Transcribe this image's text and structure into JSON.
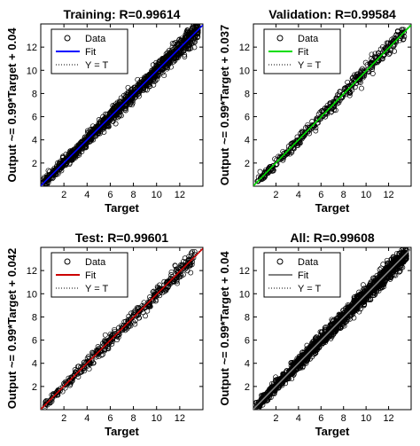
{
  "chart_data": [
    {
      "type": "scatter",
      "title": "Training: R=0.99614",
      "xlabel": "Target",
      "ylabel": "Output ~= 0.99*Target + 0.04",
      "xlim": [
        0,
        14
      ],
      "ylim": [
        0,
        14
      ],
      "xticks": [
        "2",
        "4",
        "6",
        "8",
        "10",
        "12"
      ],
      "yticks": [
        "2",
        "4",
        "6",
        "8",
        "10",
        "12"
      ],
      "fit": {
        "slope": 0.99,
        "intercept": 0.04,
        "color": "#0000ff"
      },
      "point_range": [
        0.2,
        13.6
      ],
      "spread": 0.34,
      "legend": [
        {
          "label": "Data",
          "style": "marker",
          "color": "#000000"
        },
        {
          "label": "Fit",
          "style": "line",
          "color": "#0000ff"
        },
        {
          "label": "Y = T",
          "style": "dotted",
          "color": "#000000"
        }
      ],
      "legend_position": "top-left",
      "grid": false
    },
    {
      "type": "scatter",
      "title": "Validation: R=0.99584",
      "xlabel": "Target",
      "ylabel": "Output ~= 0.99*Target + 0.037",
      "xlim": [
        0,
        14
      ],
      "ylim": [
        0,
        14
      ],
      "xticks": [
        "2",
        "4",
        "6",
        "8",
        "10",
        "12"
      ],
      "yticks": [
        "2",
        "4",
        "6",
        "8",
        "10",
        "12"
      ],
      "fit": {
        "slope": 0.99,
        "intercept": 0.037,
        "color": "#00dd00"
      },
      "point_range": [
        0.3,
        13.4
      ],
      "spread": 0.3,
      "legend": [
        {
          "label": "Data",
          "style": "marker",
          "color": "#000000"
        },
        {
          "label": "Fit",
          "style": "line",
          "color": "#00dd00"
        },
        {
          "label": "Y = T",
          "style": "dotted",
          "color": "#000000"
        }
      ],
      "legend_position": "top-left",
      "grid": false
    },
    {
      "type": "scatter",
      "title": "Test: R=0.99601",
      "xlabel": "Target",
      "ylabel": "Output ~= 0.99*Target + 0.042",
      "xlim": [
        0,
        14
      ],
      "ylim": [
        0,
        14
      ],
      "xticks": [
        "2",
        "4",
        "6",
        "8",
        "10",
        "12"
      ],
      "yticks": [
        "2",
        "4",
        "6",
        "8",
        "10",
        "12"
      ],
      "fit": {
        "slope": 0.99,
        "intercept": 0.042,
        "color": "#cc0000"
      },
      "point_range": [
        0.3,
        13.3
      ],
      "spread": 0.3,
      "legend": [
        {
          "label": "Data",
          "style": "marker",
          "color": "#000000"
        },
        {
          "label": "Fit",
          "style": "line",
          "color": "#cc0000"
        },
        {
          "label": "Y = T",
          "style": "dotted",
          "color": "#000000"
        }
      ],
      "legend_position": "top-left",
      "grid": false
    },
    {
      "type": "scatter",
      "title": "All: R=0.99608",
      "xlabel": "Target",
      "ylabel": "Output ~= 0.99*Target + 0.04",
      "xlim": [
        0,
        14
      ],
      "ylim": [
        0,
        14
      ],
      "xticks": [
        "2",
        "4",
        "6",
        "8",
        "10",
        "12"
      ],
      "yticks": [
        "2",
        "4",
        "6",
        "8",
        "10",
        "12"
      ],
      "fit": {
        "slope": 0.99,
        "intercept": 0.04,
        "color": "#808080"
      },
      "point_range": [
        0.2,
        13.6
      ],
      "spread": 0.34,
      "legend": [
        {
          "label": "Data",
          "style": "marker",
          "color": "#000000"
        },
        {
          "label": "Fit",
          "style": "line",
          "color": "#808080"
        },
        {
          "label": "Y = T",
          "style": "dotted",
          "color": "#000000"
        }
      ],
      "legend_position": "top-left",
      "grid": false
    }
  ]
}
